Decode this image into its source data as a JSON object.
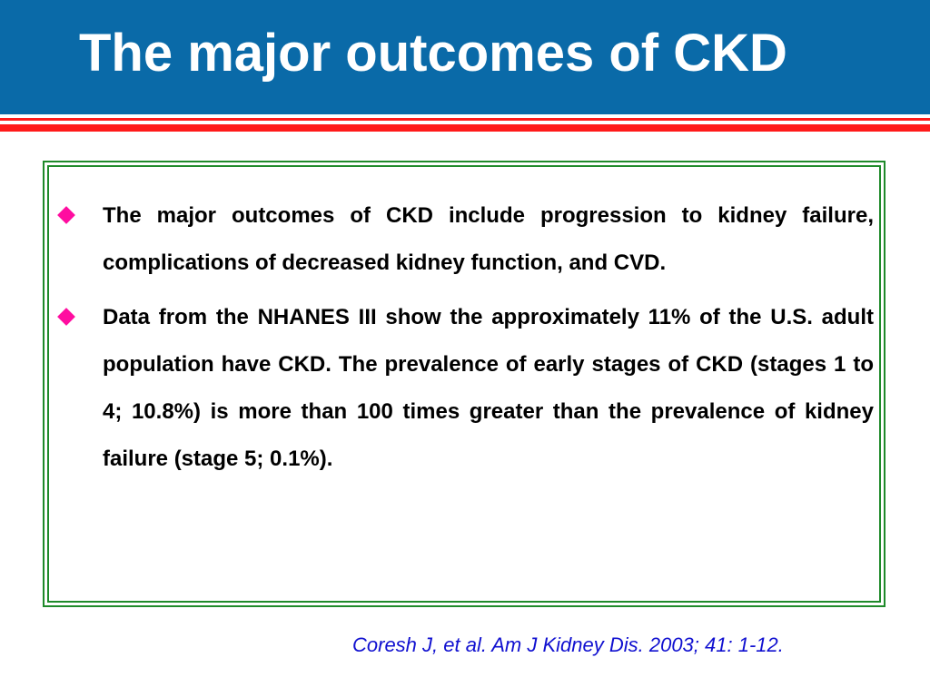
{
  "header": {
    "title": "The major outcomes of CKD",
    "colors": {
      "background": "#0a6aa8",
      "title_text": "#ffffff",
      "rule": "#ff1a1a"
    }
  },
  "content": {
    "border_color": "#1f8a2a",
    "bullet_icon": "diamond-bullet-icon",
    "bullet_color": "#ff0da0",
    "bullets": [
      {
        "text": "The major outcomes of CKD include progression to kidney failure, complications of decreased kidney function, and CVD."
      },
      {
        "text": "Data from the NHANES III show the approximately 11% of the U.S. adult population have CKD. The prevalence of early stages of CKD (stages 1 to 4; 10.8%) is more than 100 times greater than the prevalence of kidney failure (stage 5; 0.1%)."
      }
    ]
  },
  "citation": {
    "text": "Coresh J, et al. Am J Kidney Dis. 2003; 41: 1-12.",
    "color": "#1010d0"
  }
}
